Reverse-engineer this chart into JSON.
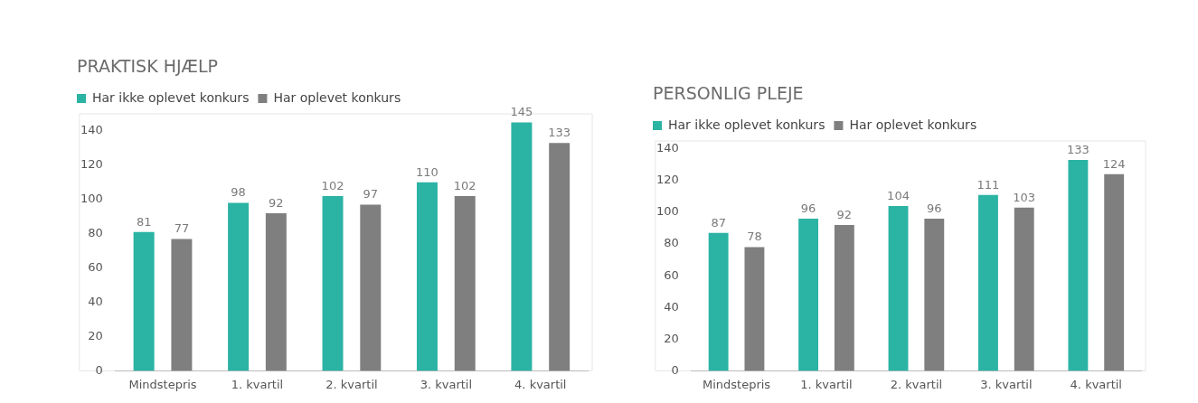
{
  "chart_data": [
    {
      "type": "bar",
      "title": "PRAKTISK HJÆLP",
      "categories": [
        "Mindstepris",
        "1. kvartil",
        "2. kvartil",
        "3. kvartil",
        "4. kvartil"
      ],
      "series": [
        {
          "name": "Har ikke oplevet konkurs",
          "color": "#2bb3a4",
          "values": [
            81,
            98,
            102,
            110,
            145
          ]
        },
        {
          "name": "Har oplevet konkurs",
          "color": "#7f7f7f",
          "values": [
            77,
            92,
            97,
            102,
            133
          ]
        }
      ],
      "ylim": [
        0,
        150
      ],
      "yticks": [
        0,
        20,
        40,
        60,
        80,
        100,
        120,
        140
      ],
      "grid": false,
      "legend": "top left",
      "data_labels": true
    },
    {
      "type": "bar",
      "title": "PERSONLIG PLEJE",
      "categories": [
        "Mindstepris",
        "1. kvartil",
        "2. kvartil",
        "3. kvartil",
        "4. kvartil"
      ],
      "series": [
        {
          "name": "Har ikke oplevet konkurs",
          "color": "#2bb3a4",
          "values": [
            87,
            96,
            104,
            111,
            133
          ]
        },
        {
          "name": "Har oplevet konkurs",
          "color": "#7f7f7f",
          "values": [
            78,
            92,
            96,
            103,
            124
          ]
        }
      ],
      "ylim": [
        0,
        145
      ],
      "yticks": [
        0,
        20,
        40,
        60,
        80,
        100,
        120,
        140
      ],
      "grid": false,
      "legend": "top left",
      "data_labels": true
    }
  ]
}
